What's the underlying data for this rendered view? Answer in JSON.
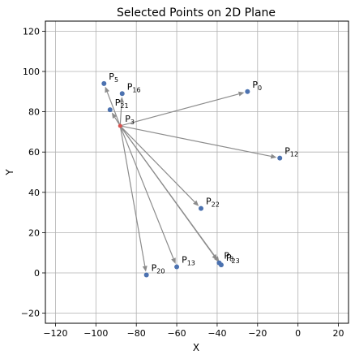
{
  "chart_data": {
    "type": "scatter",
    "title": "Selected Points on 2D Plane",
    "xlabel": "X",
    "ylabel": "Y",
    "xlim": [
      -125,
      25
    ],
    "ylim": [
      -25,
      125
    ],
    "xticks": [
      -120,
      -100,
      -80,
      -60,
      -40,
      -20,
      0,
      20
    ],
    "yticks": [
      -20,
      0,
      20,
      40,
      60,
      80,
      100,
      120
    ],
    "grid": true,
    "origin": {
      "name": "P",
      "sub": "3",
      "x": -88,
      "y": 73
    },
    "points": [
      {
        "name": "P",
        "sub": "0",
        "x": -25,
        "y": 90
      },
      {
        "name": "P",
        "sub": "5",
        "x": -96,
        "y": 94
      },
      {
        "name": "P",
        "sub": "16",
        "x": -87,
        "y": 89
      },
      {
        "name": "P",
        "sub": "21",
        "x": -93,
        "y": 81
      },
      {
        "name": "P",
        "sub": "12",
        "x": -9,
        "y": 57
      },
      {
        "name": "P",
        "sub": "22",
        "x": -48,
        "y": 32
      },
      {
        "name": "P",
        "sub": "8",
        "x": -39,
        "y": 5
      },
      {
        "name": "P",
        "sub": "23",
        "x": -38,
        "y": 4
      },
      {
        "name": "P",
        "sub": "13",
        "x": -60,
        "y": 3
      },
      {
        "name": "P",
        "sub": "20",
        "x": -75,
        "y": -1
      }
    ],
    "colors": {
      "point": "#4c72b0",
      "origin": "#d9534f",
      "arrow": "#8c8c8c",
      "grid": "#b0b0b0"
    }
  }
}
